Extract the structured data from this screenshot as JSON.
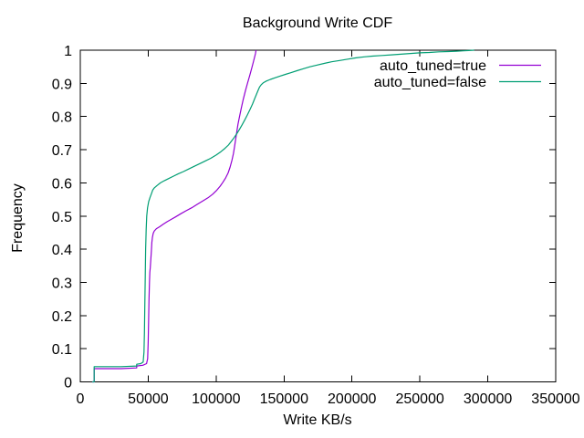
{
  "colors": {
    "background": "#ffffff",
    "axis": "#000000",
    "text": "#000000",
    "series_true": "#9400d3",
    "series_false": "#009e73"
  },
  "chart_data": {
    "type": "line",
    "title": "Background Write CDF",
    "xlabel": "Write KB/s",
    "ylabel": "Frequency",
    "xlim": [
      0,
      350000
    ],
    "ylim": [
      0,
      1
    ],
    "grid": false,
    "legend_position": "top-right-inside",
    "x_ticks": [
      0,
      50000,
      100000,
      150000,
      200000,
      250000,
      300000,
      350000
    ],
    "x_tick_labels": [
      "0",
      "50000",
      "100000",
      "150000",
      "200000",
      "250000",
      "300000",
      "350000"
    ],
    "y_ticks": [
      0,
      0.1,
      0.2,
      0.3,
      0.4,
      0.5,
      0.6,
      0.7,
      0.8,
      0.9,
      1
    ],
    "y_tick_labels": [
      "0",
      "0.1",
      "0.2",
      "0.3",
      "0.4",
      "0.5",
      "0.6",
      "0.7",
      "0.8",
      "0.9",
      "1"
    ],
    "series": [
      {
        "name": "auto_tuned=true",
        "color": "#9400d3",
        "points": [
          [
            8800,
            0
          ],
          [
            10200,
            0
          ],
          [
            10200,
            0.04
          ],
          [
            30000,
            0.04
          ],
          [
            41500,
            0.042
          ],
          [
            41500,
            0.048
          ],
          [
            46000,
            0.05
          ],
          [
            48800,
            0.055
          ],
          [
            49600,
            0.07
          ],
          [
            50000,
            0.12
          ],
          [
            50300,
            0.19
          ],
          [
            50600,
            0.25
          ],
          [
            50900,
            0.3
          ],
          [
            51200,
            0.33
          ],
          [
            51500,
            0.345
          ],
          [
            51900,
            0.37
          ],
          [
            52300,
            0.395
          ],
          [
            52700,
            0.42
          ],
          [
            53100,
            0.435
          ],
          [
            53700,
            0.448
          ],
          [
            54500,
            0.455
          ],
          [
            56000,
            0.462
          ],
          [
            58500,
            0.468
          ],
          [
            61000,
            0.475
          ],
          [
            64000,
            0.483
          ],
          [
            67000,
            0.49
          ],
          [
            70000,
            0.497
          ],
          [
            74000,
            0.507
          ],
          [
            78000,
            0.516
          ],
          [
            82000,
            0.525
          ],
          [
            86000,
            0.535
          ],
          [
            90000,
            0.545
          ],
          [
            94000,
            0.555
          ],
          [
            97500,
            0.566
          ],
          [
            100500,
            0.578
          ],
          [
            103000,
            0.59
          ],
          [
            105000,
            0.602
          ],
          [
            107000,
            0.615
          ],
          [
            108800,
            0.63
          ],
          [
            110300,
            0.648
          ],
          [
            111600,
            0.667
          ],
          [
            112700,
            0.688
          ],
          [
            113600,
            0.71
          ],
          [
            114400,
            0.732
          ],
          [
            115200,
            0.754
          ],
          [
            116100,
            0.777
          ],
          [
            117200,
            0.8
          ],
          [
            118500,
            0.825
          ],
          [
            120000,
            0.852
          ],
          [
            121600,
            0.878
          ],
          [
            123200,
            0.902
          ],
          [
            124800,
            0.925
          ],
          [
            126200,
            0.946
          ],
          [
            127400,
            0.964
          ],
          [
            128300,
            0.979
          ],
          [
            129000,
            0.99
          ],
          [
            129400,
            1.0
          ]
        ]
      },
      {
        "name": "auto_tuned=false",
        "color": "#009e73",
        "points": [
          [
            8800,
            0
          ],
          [
            10200,
            0
          ],
          [
            10200,
            0.046
          ],
          [
            30000,
            0.046
          ],
          [
            41500,
            0.048
          ],
          [
            41500,
            0.053
          ],
          [
            44500,
            0.055
          ],
          [
            46300,
            0.06
          ],
          [
            46900,
            0.09
          ],
          [
            47200,
            0.15
          ],
          [
            47500,
            0.23
          ],
          [
            47800,
            0.32
          ],
          [
            48100,
            0.4
          ],
          [
            48500,
            0.46
          ],
          [
            48900,
            0.5
          ],
          [
            49500,
            0.525
          ],
          [
            50300,
            0.543
          ],
          [
            51300,
            0.556
          ],
          [
            52300,
            0.567
          ],
          [
            53300,
            0.578
          ],
          [
            54500,
            0.585
          ],
          [
            56500,
            0.592
          ],
          [
            59000,
            0.6
          ],
          [
            62000,
            0.607
          ],
          [
            65000,
            0.613
          ],
          [
            68500,
            0.62
          ],
          [
            72000,
            0.627
          ],
          [
            76000,
            0.634
          ],
          [
            80000,
            0.642
          ],
          [
            84000,
            0.65
          ],
          [
            88000,
            0.658
          ],
          [
            92000,
            0.666
          ],
          [
            96000,
            0.674
          ],
          [
            100000,
            0.684
          ],
          [
            103500,
            0.694
          ],
          [
            106500,
            0.704
          ],
          [
            109000,
            0.714
          ],
          [
            111000,
            0.724
          ],
          [
            113000,
            0.735
          ],
          [
            115000,
            0.747
          ],
          [
            117000,
            0.76
          ],
          [
            119000,
            0.774
          ],
          [
            121000,
            0.789
          ],
          [
            123000,
            0.805
          ],
          [
            125000,
            0.822
          ],
          [
            126800,
            0.838
          ],
          [
            128400,
            0.854
          ],
          [
            129800,
            0.868
          ],
          [
            131000,
            0.88
          ],
          [
            132000,
            0.889
          ],
          [
            133200,
            0.896
          ],
          [
            134800,
            0.902
          ],
          [
            137000,
            0.907
          ],
          [
            140000,
            0.912
          ],
          [
            143500,
            0.917
          ],
          [
            147000,
            0.922
          ],
          [
            151000,
            0.927
          ],
          [
            155000,
            0.932
          ],
          [
            159500,
            0.938
          ],
          [
            164000,
            0.944
          ],
          [
            169000,
            0.95
          ],
          [
            174000,
            0.955
          ],
          [
            179500,
            0.96
          ],
          [
            185000,
            0.965
          ],
          [
            191000,
            0.969
          ],
          [
            197000,
            0.973
          ],
          [
            203000,
            0.977
          ],
          [
            209000,
            0.98
          ],
          [
            215000,
            0.982
          ],
          [
            222000,
            0.984
          ],
          [
            229000,
            0.986
          ],
          [
            236000,
            0.988
          ],
          [
            243000,
            0.99
          ],
          [
            250000,
            0.992
          ],
          [
            257000,
            0.993
          ],
          [
            264000,
            0.995
          ],
          [
            271000,
            0.996
          ],
          [
            277000,
            0.997
          ],
          [
            282000,
            0.998
          ],
          [
            286000,
            0.999
          ],
          [
            290000,
            1.0
          ]
        ]
      }
    ]
  }
}
